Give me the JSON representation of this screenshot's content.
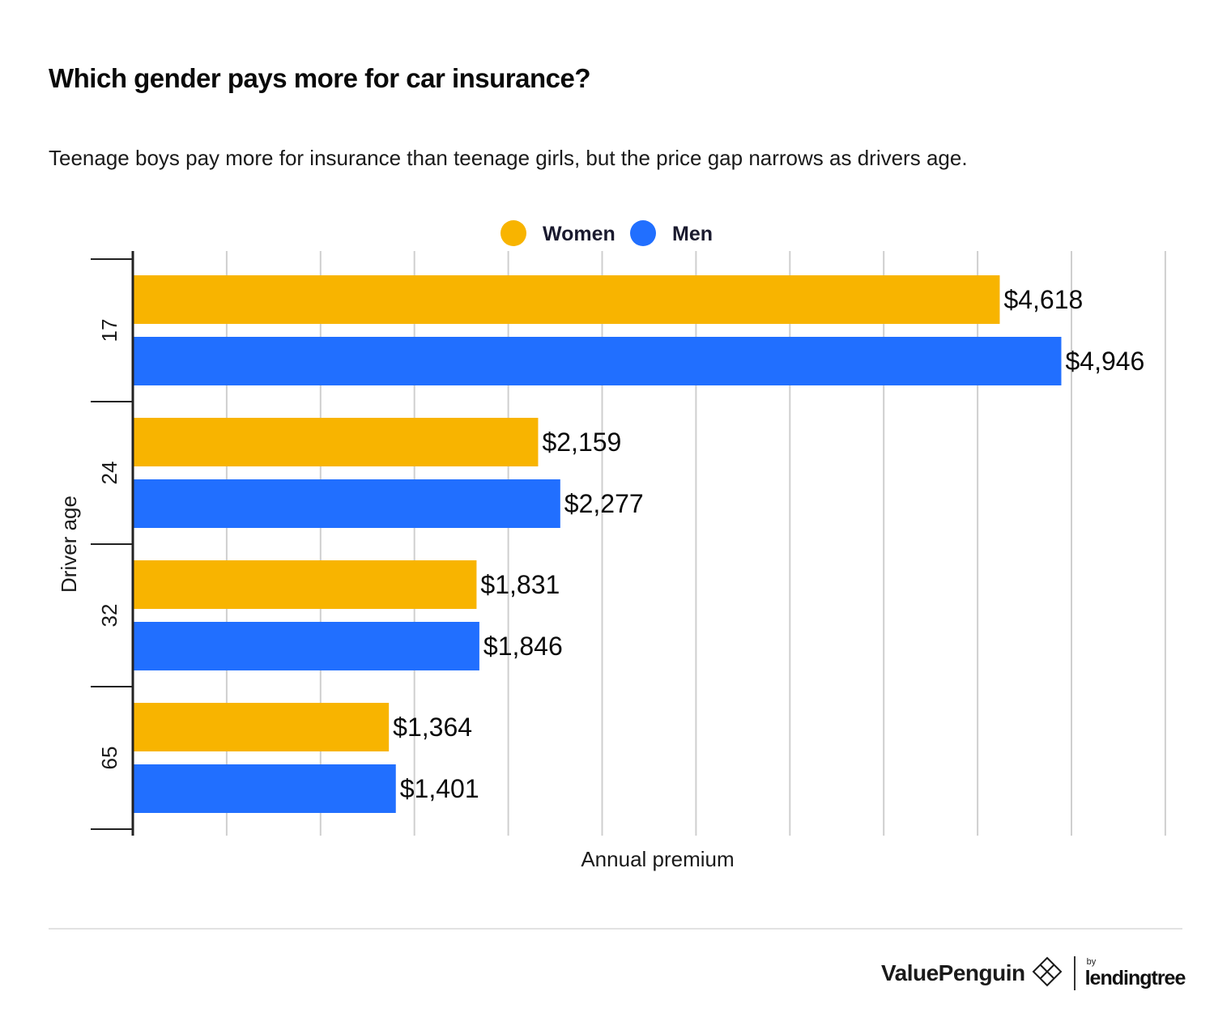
{
  "title": "Which gender pays more for car insurance?",
  "subtitle": "Teenage boys pay more for insurance than teenage girls, but the price gap narrows as drivers age.",
  "chart_data": {
    "type": "bar",
    "orientation": "horizontal",
    "categories": [
      "17",
      "24",
      "32",
      "65"
    ],
    "series": [
      {
        "name": "Women",
        "color": "#F8B400",
        "values": [
          4618,
          2159,
          1831,
          1364
        ],
        "labels": [
          "$4,618",
          "$2,159",
          "$1,831",
          "$1,364"
        ]
      },
      {
        "name": "Men",
        "color": "#216FFF",
        "values": [
          4946,
          2277,
          1846,
          1401
        ],
        "labels": [
          "$4,946",
          "$2,277",
          "$1,846",
          "$1,401"
        ]
      }
    ],
    "xlabel": "Annual premium",
    "ylabel": "Driver age",
    "xlim": [
      0,
      5500
    ],
    "grid": true,
    "legend": "top-center"
  },
  "branding": {
    "valuepenguin": "ValuePenguin",
    "by": "by",
    "lendingtree": "lendingtree"
  }
}
